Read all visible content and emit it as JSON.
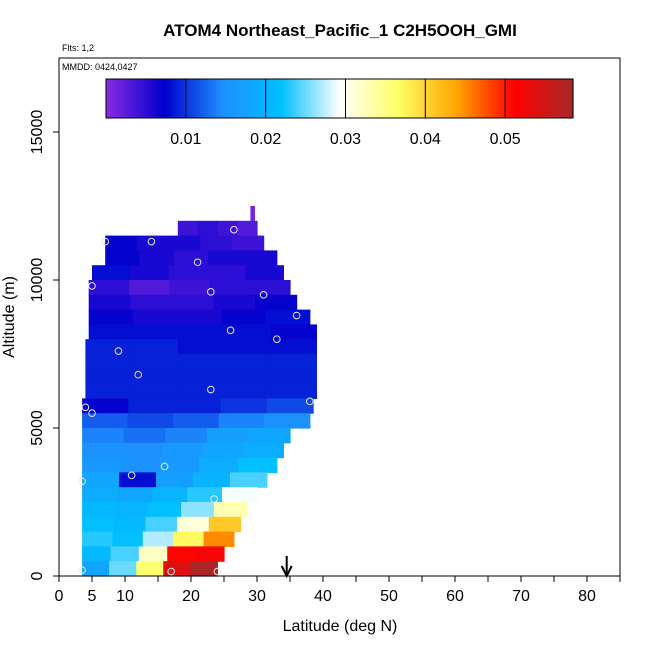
{
  "chart_data": {
    "type": "heatmap",
    "title": "ATOM4 Northeast_Pacific_1 C2H5OOH_GMI",
    "flights_text": "Flts: 1,2",
    "dates_text": "MMDD: 0424,0427",
    "xlabel": "Latitude (deg N)",
    "ylabel": "Altitude (m)",
    "xlim": [
      0,
      85
    ],
    "ylim": [
      0,
      17500
    ],
    "x_ticks": [
      0,
      5,
      10,
      20,
      30,
      40,
      50,
      60,
      70,
      80
    ],
    "x_tick_labels": [
      "0",
      "5",
      "10",
      "20",
      "30",
      "40",
      "50",
      "60",
      "70",
      "80"
    ],
    "y_ticks": [
      0,
      5000,
      10000,
      15000
    ],
    "y_tick_labels": [
      "0",
      "5000",
      "10000",
      "15000"
    ],
    "colorbar": {
      "min": 0.0,
      "max": 0.0585,
      "ticks": [
        0.01,
        0.02,
        0.03,
        0.04,
        0.05
      ],
      "tick_labels": [
        "0.01",
        "0.02",
        "0.03",
        "0.04",
        "0.05"
      ],
      "colors": [
        "#8a2be2",
        "#0000cd",
        "#1e90ff",
        "#00bfff",
        "#ffffff",
        "#ffff66",
        "#ffa500",
        "#ff0000",
        "#a52a2a"
      ]
    },
    "marker": {
      "x": 34.5,
      "label": "arrow"
    },
    "grid": false,
    "rows": [
      {
        "y0": 12000,
        "y1": 12500,
        "x0": 29,
        "x1": 29.6,
        "v": [
          0.001
        ]
      },
      {
        "y0": 11500,
        "y1": 12000,
        "x0": 18,
        "x1": 30,
        "v": [
          0.004,
          0.005,
          0.004,
          0.003
        ]
      },
      {
        "y0": 11000,
        "y1": 11500,
        "x0": 7,
        "x1": 31,
        "v": [
          0.007,
          0.006,
          0.006,
          0.005,
          0.004
        ]
      },
      {
        "y0": 10500,
        "y1": 11000,
        "x0": 7,
        "x1": 33,
        "v": [
          0.007,
          0.006,
          0.005,
          0.006,
          0.006
        ]
      },
      {
        "y0": 10000,
        "y1": 10500,
        "x0": 5,
        "x1": 34,
        "v": [
          0.008,
          0.006,
          0.005,
          0.005,
          0.006
        ]
      },
      {
        "y0": 9500,
        "y1": 10000,
        "x0": 4.5,
        "x1": 35,
        "v": [
          0.005,
          0.003,
          0.004,
          0.005,
          0.005
        ]
      },
      {
        "y0": 9000,
        "y1": 9500,
        "x0": 4.5,
        "x1": 36,
        "v": [
          0.006,
          0.005,
          0.005,
          0.006,
          0.007
        ]
      },
      {
        "y0": 8500,
        "y1": 9000,
        "x0": 4.5,
        "x1": 38,
        "v": [
          0.007,
          0.006,
          0.006,
          0.007,
          0.008
        ]
      },
      {
        "y0": 8000,
        "y1": 8500,
        "x0": 4.5,
        "x1": 39,
        "v": [
          0.008,
          0.008,
          0.008,
          0.008,
          0.007
        ]
      },
      {
        "y0": 7500,
        "y1": 8000,
        "x0": 4,
        "x1": 39,
        "v": [
          0.009,
          0.009,
          0.008,
          0.008,
          0.008
        ]
      },
      {
        "y0": 7000,
        "y1": 7500,
        "x0": 4,
        "x1": 39,
        "v": [
          0.009,
          0.009,
          0.009,
          0.009,
          0.009
        ]
      },
      {
        "y0": 6500,
        "y1": 7000,
        "x0": 4,
        "x1": 39,
        "v": [
          0.009,
          0.009,
          0.009,
          0.009,
          0.009
        ]
      },
      {
        "y0": 6000,
        "y1": 6500,
        "x0": 4,
        "x1": 39,
        "v": [
          0.009,
          0.009,
          0.009,
          0.009,
          0.009
        ]
      },
      {
        "y0": 5500,
        "y1": 6000,
        "x0": 3.5,
        "x1": 38.5,
        "v": [
          0.007,
          0.009,
          0.009,
          0.01,
          0.011
        ]
      },
      {
        "y0": 5000,
        "y1": 5500,
        "x0": 3.5,
        "x1": 38,
        "v": [
          0.012,
          0.011,
          0.012,
          0.014,
          0.015
        ]
      },
      {
        "y0": 4500,
        "y1": 5000,
        "x0": 3.5,
        "x1": 35,
        "v": [
          0.014,
          0.013,
          0.014,
          0.017,
          0.018
        ]
      },
      {
        "y0": 4000,
        "y1": 4500,
        "x0": 3.5,
        "x1": 34,
        "v": [
          0.015,
          0.015,
          0.016,
          0.018,
          0.019
        ]
      },
      {
        "y0": 3500,
        "y1": 4000,
        "x0": 3.5,
        "x1": 33,
        "v": [
          0.016,
          0.015,
          0.016,
          0.019,
          0.022
        ]
      },
      {
        "y0": 3000,
        "y1": 3500,
        "x0": 3.5,
        "x1": 31.5,
        "v": [
          0.018,
          0.008,
          0.017,
          0.02,
          0.024
        ]
      },
      {
        "y0": 2500,
        "y1": 3000,
        "x0": 3.5,
        "x1": 30,
        "v": [
          0.019,
          0.018,
          0.02,
          0.023,
          0.029
        ]
      },
      {
        "y0": 2000,
        "y1": 2500,
        "x0": 3.5,
        "x1": 28.5,
        "v": [
          0.021,
          0.02,
          0.022,
          0.026,
          0.033
        ]
      },
      {
        "y0": 1500,
        "y1": 2000,
        "x0": 3.5,
        "x1": 27.5,
        "v": [
          0.022,
          0.021,
          0.024,
          0.031,
          0.041
        ]
      },
      {
        "y0": 1000,
        "y1": 1500,
        "x0": 3.5,
        "x1": 26.5,
        "v": [
          0.023,
          0.022,
          0.027,
          0.037,
          0.045
        ]
      },
      {
        "y0": 500,
        "y1": 1000,
        "x0": 3.5,
        "x1": 25,
        "v": [
          0.021,
          0.024,
          0.032,
          0.051,
          0.052
        ]
      },
      {
        "y0": 0,
        "y1": 500,
        "x0": 3.5,
        "x1": 24,
        "v": [
          0.018,
          0.025,
          0.036,
          0.054,
          0.058
        ]
      }
    ],
    "points": [
      {
        "x": 7,
        "y": 11300
      },
      {
        "x": 14,
        "y": 11300
      },
      {
        "x": 26.5,
        "y": 11700
      },
      {
        "x": 21,
        "y": 10600
      },
      {
        "x": 5,
        "y": 9800
      },
      {
        "x": 23,
        "y": 9600
      },
      {
        "x": 31,
        "y": 9500
      },
      {
        "x": 36,
        "y": 8800
      },
      {
        "x": 26,
        "y": 8300
      },
      {
        "x": 33,
        "y": 8000
      },
      {
        "x": 9,
        "y": 7600
      },
      {
        "x": 12,
        "y": 6800
      },
      {
        "x": 23,
        "y": 6300
      },
      {
        "x": 38,
        "y": 5900
      },
      {
        "x": 4,
        "y": 5700
      },
      {
        "x": 5,
        "y": 5500
      },
      {
        "x": 16,
        "y": 3700
      },
      {
        "x": 11,
        "y": 3400
      },
      {
        "x": 3.5,
        "y": 3200
      },
      {
        "x": 23.5,
        "y": 2600
      },
      {
        "x": 3.5,
        "y": 200
      },
      {
        "x": 17,
        "y": 150
      },
      {
        "x": 24,
        "y": 150
      }
    ]
  }
}
